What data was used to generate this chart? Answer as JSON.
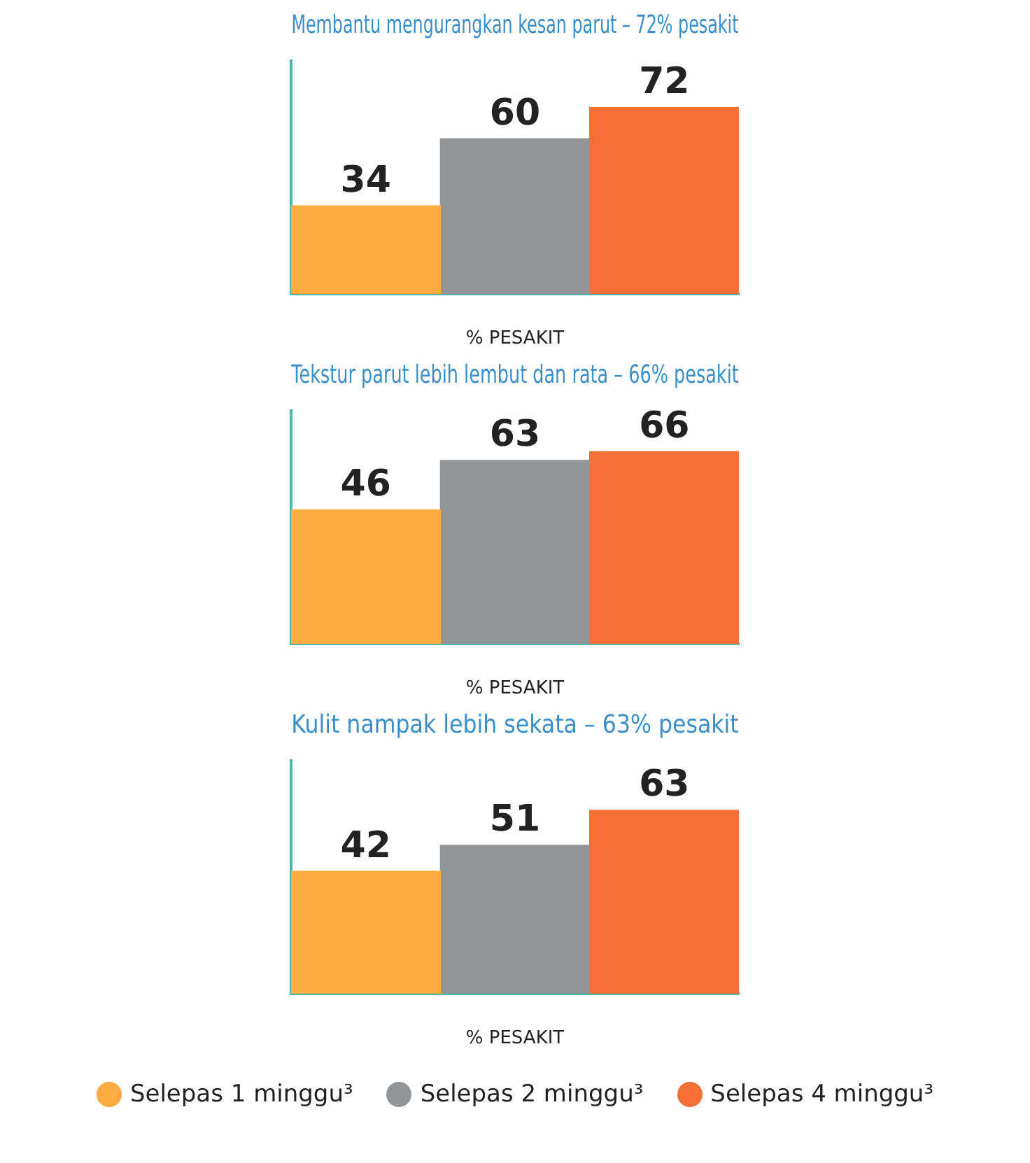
{
  "chart_data": [
    {
      "type": "bar",
      "title": "Membantu mengurangkan kesan parut – 72% pesakit",
      "xlabel": "% PESAKIT",
      "categories": [
        null
      ],
      "series": [
        {
          "color": "#fbab3f",
          "values": [
            34
          ]
        },
        {
          "color": "#939598",
          "values": [
            60
          ]
        },
        {
          "color": "#f47036",
          "values": [
            72
          ]
        }
      ],
      "data_labels": true,
      "grid": false,
      "legend": false
    },
    {
      "type": "bar",
      "title": "Tekstur parut lebih lembut dan rata – 66% pesakit",
      "xlabel": "% PESAKIT",
      "categories": [
        null
      ],
      "series": [
        {
          "color": "#fbab3f",
          "values": [
            46
          ]
        },
        {
          "color": "#939598",
          "values": [
            63
          ]
        },
        {
          "color": "#f47036",
          "values": [
            66
          ]
        }
      ],
      "data_labels": true,
      "grid": false,
      "legend": false
    },
    {
      "type": "bar",
      "title": "Kulit nampak lebih sekata – 63% pesakit",
      "xlabel": "% PESAKIT",
      "categories": [
        null
      ],
      "series": [
        {
          "name": "Selepas 1 minggu³",
          "color": "#fbab3f",
          "values": [
            42
          ]
        },
        {
          "name": "Selepas 2 minggu³",
          "color": "#939598",
          "values": [
            51
          ]
        },
        {
          "name": "Selepas 4 minggu³",
          "color": "#f47036",
          "values": [
            63
          ]
        }
      ],
      "data_labels": true,
      "grid": false,
      "legend": "bottom"
    }
  ]
}
